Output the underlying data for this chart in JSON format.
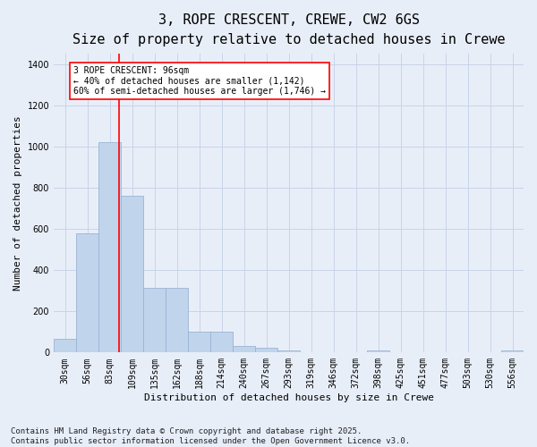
{
  "title_line1": "3, ROPE CRESCENT, CREWE, CW2 6GS",
  "title_line2": "Size of property relative to detached houses in Crewe",
  "xlabel": "Distribution of detached houses by size in Crewe",
  "ylabel": "Number of detached properties",
  "categories": [
    "30sqm",
    "56sqm",
    "83sqm",
    "109sqm",
    "135sqm",
    "162sqm",
    "188sqm",
    "214sqm",
    "240sqm",
    "267sqm",
    "293sqm",
    "319sqm",
    "346sqm",
    "372sqm",
    "398sqm",
    "425sqm",
    "451sqm",
    "477sqm",
    "503sqm",
    "530sqm",
    "556sqm"
  ],
  "values": [
    65,
    580,
    1020,
    760,
    315,
    315,
    100,
    100,
    30,
    25,
    10,
    0,
    0,
    0,
    10,
    0,
    0,
    0,
    0,
    0,
    10
  ],
  "bar_color": "#c0d4ec",
  "bar_edgecolor": "#9ab4d4",
  "grid_color": "#c8d4e8",
  "background_color": "#e8eef8",
  "red_line_x": 2.42,
  "annotation_box_text": "3 ROPE CRESCENT: 96sqm\n← 40% of detached houses are smaller (1,142)\n60% of semi-detached houses are larger (1,746) →",
  "ylim": [
    0,
    1450
  ],
  "yticks": [
    0,
    200,
    400,
    600,
    800,
    1000,
    1200,
    1400
  ],
  "footnote": "Contains HM Land Registry data © Crown copyright and database right 2025.\nContains public sector information licensed under the Open Government Licence v3.0.",
  "title_fontsize": 11,
  "subtitle_fontsize": 9,
  "tick_fontsize": 7,
  "ylabel_fontsize": 8,
  "xlabel_fontsize": 8,
  "annot_fontsize": 7,
  "footnote_fontsize": 6.5
}
